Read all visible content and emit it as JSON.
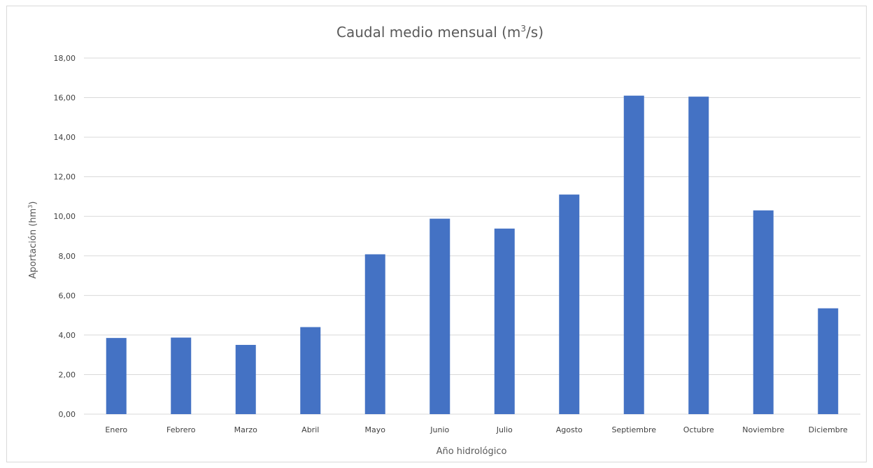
{
  "chart_data": {
    "type": "bar",
    "title": "Caudal medio mensual (m",
    "title_sup": "3",
    "title_suffix": "/s)",
    "xlabel": "Año hidrológico",
    "ylabel": "Aportación (hm",
    "ylabel_sup": "3",
    "ylabel_suffix": ")",
    "categories": [
      "Enero",
      "Febrero",
      "Marzo",
      "Abril",
      "Mayo",
      "Junio",
      "Julio",
      "Agosto",
      "Septiembre",
      "Octubre",
      "Noviembre",
      "Diciembre"
    ],
    "values": [
      3.85,
      3.87,
      3.5,
      4.4,
      8.08,
      9.88,
      9.38,
      11.1,
      16.1,
      16.05,
      10.3,
      5.35
    ],
    "ylim": [
      0,
      18
    ],
    "yticks": [
      "0,00",
      "2,00",
      "4,00",
      "6,00",
      "8,00",
      "10,00",
      "12,00",
      "14,00",
      "16,00",
      "18,00"
    ],
    "grid": true,
    "legend": "none",
    "bar_color": "#4472c4",
    "grid_color": "#d9d9d9"
  }
}
